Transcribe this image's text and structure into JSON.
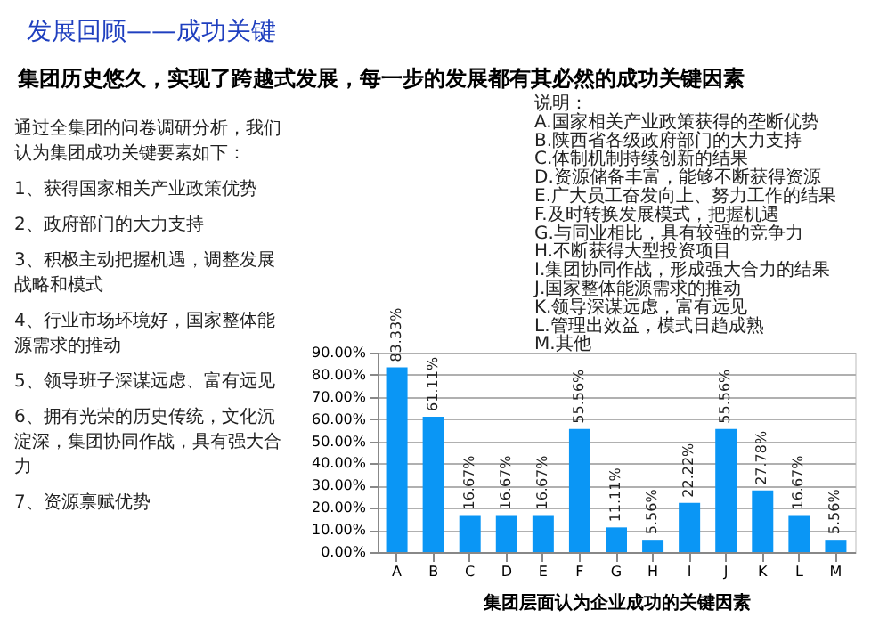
{
  "chart_data": {
    "type": "bar",
    "title": "发展回顾——成功关键",
    "subtitle": "集团历史悠久，实现了跨越式发展，每一步的发展都有其必然的成功关键因素",
    "xlabel": "集团层面认为企业成功的关键因素",
    "categories": [
      "A",
      "B",
      "C",
      "D",
      "E",
      "F",
      "G",
      "H",
      "I",
      "J",
      "K",
      "L",
      "M"
    ],
    "values": [
      83.33,
      61.11,
      16.67,
      16.67,
      16.67,
      55.56,
      11.11,
      5.56,
      22.22,
      55.56,
      27.78,
      16.67,
      5.56
    ],
    "value_labels": [
      "83.33%",
      "61.11%",
      "16.67%",
      "16.67%",
      "16.67%",
      "55.56%",
      "11.11%",
      "5.56%",
      "22.22%",
      "55.56%",
      "27.78%",
      "16.67%",
      "5.56%"
    ],
    "color": "#0a96f5",
    "ylim": [
      0,
      90
    ],
    "yticks": [
      {
        "value": 0,
        "label": "0.00%"
      },
      {
        "value": 10,
        "label": "10.00%"
      },
      {
        "value": 20,
        "label": "20.00%"
      },
      {
        "value": 30,
        "label": "30.00%"
      },
      {
        "value": 40,
        "label": "40.00%"
      },
      {
        "value": 50,
        "label": "50.00%"
      },
      {
        "value": 60,
        "label": "60.00%"
      },
      {
        "value": 70,
        "label": "70.00%"
      },
      {
        "value": 80,
        "label": "80.00%"
      },
      {
        "value": 90,
        "label": "90.00%"
      }
    ],
    "grid": "y",
    "annotations": [
      "通过全集团的问卷调研分析，我们认为集团成功关键要素如下：",
      "1、获得国家相关产业政策优势",
      "2、政府部门的大力支持",
      "3、积极主动把握机遇，调整发展战略和模式",
      "4、行业市场环境好，国家整体能源需求的推动",
      "5、领导班子深谋远虑、富有远见",
      "6、拥有光荣的历史传统，文化沉淀深，集团协同作战，具有强大合力",
      "7、资源禀赋优势",
      "说明：",
      "A.国家相关产业政策获得的垄断优势",
      "B.陕西省各级政府部门的大力支持",
      "C.体制机制持续创新的结果",
      "D.资源储备丰富，能够不断获得资源",
      "E.广大员工奋发向上、努力工作的结果",
      "F.及时转换发展模式，把握机遇",
      "G.与同业相比，具有较强的竞争力",
      "H.不断获得大型投资项目",
      "I.集团协同作战，形成强大合力的结果",
      "J.国家整体能源需求的推动",
      "K.领导深谋远虑，富有远见",
      "L.管理出效益，模式日趋成熟",
      "M.其他"
    ]
  }
}
